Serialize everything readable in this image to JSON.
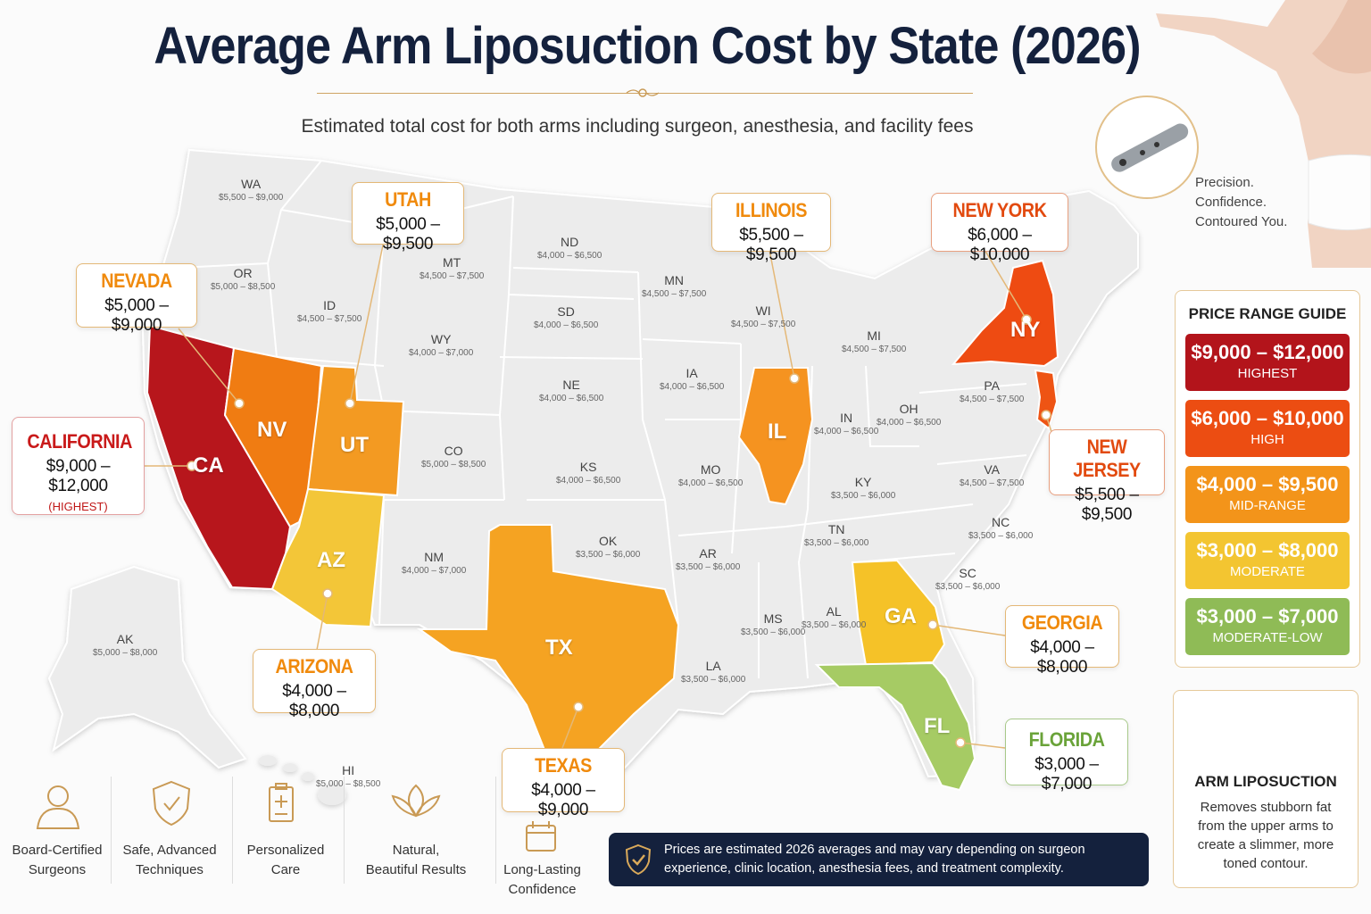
{
  "title": "Average Arm Liposuction Cost by State (2026)",
  "subtitle": "Estimated total cost for both arms including surgeon, anesthesia, and facility fees",
  "tagline": [
    "Precision.",
    "Confidence.",
    "Contoured You."
  ],
  "callouts": {
    "utah": {
      "name": "UTAH",
      "price": "$5,000 – $9,500"
    },
    "nevada": {
      "name": "NEVADA",
      "price": "$5,000 – $9,000"
    },
    "california": {
      "name": "CALIFORNIA",
      "price": "$9,000 – $12,000",
      "note": "(HIGHEST)"
    },
    "arizona": {
      "name": "ARIZONA",
      "price": "$4,000 – $8,000"
    },
    "texas": {
      "name": "TEXAS",
      "price": "$4,000 – $9,000"
    },
    "illinois": {
      "name": "ILLINOIS",
      "price": "$5,500 – $9,500"
    },
    "newyork": {
      "name": "NEW YORK",
      "price": "$6,000 – $10,000"
    },
    "newjersey": {
      "name": "NEW JERSEY",
      "price": "$5,500 – $9,500"
    },
    "georgia": {
      "name": "GEORGIA",
      "price": "$4,000 – $8,000"
    },
    "florida": {
      "name": "FLORIDA",
      "price": "$3,000 – $7,000"
    }
  },
  "highlighted_abbr": {
    "ca": "CA",
    "nv": "NV",
    "ut": "UT",
    "az": "AZ",
    "tx": "TX",
    "il": "IL",
    "ny": "NY",
    "ga": "GA",
    "fl": "FL"
  },
  "states": {
    "wa": {
      "a": "WA",
      "r": "$5,500 – $9,000"
    },
    "or": {
      "a": "OR",
      "r": "$5,000 – $8,500"
    },
    "id": {
      "a": "ID",
      "r": "$4,500 – $7,500"
    },
    "mt": {
      "a": "MT",
      "r": "$4,500 – $7,500"
    },
    "wy": {
      "a": "WY",
      "r": "$4,000 – $7,000"
    },
    "co": {
      "a": "CO",
      "r": "$5,000 – $8,500"
    },
    "nm": {
      "a": "NM",
      "r": "$4,000 – $7,000"
    },
    "nd": {
      "a": "ND",
      "r": "$4,000 – $6,500"
    },
    "sd": {
      "a": "SD",
      "r": "$4,000 – $6,500"
    },
    "ne": {
      "a": "NE",
      "r": "$4,000 – $6,500"
    },
    "ks": {
      "a": "KS",
      "r": "$4,000 – $6,500"
    },
    "ok": {
      "a": "OK",
      "r": "$3,500 – $6,000"
    },
    "mn": {
      "a": "MN",
      "r": "$4,500 – $7,500"
    },
    "ia": {
      "a": "IA",
      "r": "$4,000 – $6,500"
    },
    "mo": {
      "a": "MO",
      "r": "$4,000 – $6,500"
    },
    "ar": {
      "a": "AR",
      "r": "$3,500 – $6,000"
    },
    "la": {
      "a": "LA",
      "r": "$3,500 – $6,000"
    },
    "wi": {
      "a": "WI",
      "r": "$4,500 – $7,500"
    },
    "mi": {
      "a": "MI",
      "r": "$4,500 – $7,500"
    },
    "in": {
      "a": "IN",
      "r": "$4,000 – $6,500"
    },
    "oh": {
      "a": "OH",
      "r": "$4,000 – $6,500"
    },
    "ky": {
      "a": "KY",
      "r": "$3,500 – $6,000"
    },
    "tn": {
      "a": "TN",
      "r": "$3,500 – $6,000"
    },
    "ms": {
      "a": "MS",
      "r": "$3,500 – $6,000"
    },
    "al": {
      "a": "AL",
      "r": "$3,500 – $6,000"
    },
    "pa": {
      "a": "PA",
      "r": "$4,500 – $7,500"
    },
    "va": {
      "a": "VA",
      "r": "$4,500 – $7,500"
    },
    "nc": {
      "a": "NC",
      "r": "$3,500 – $6,000"
    },
    "sc": {
      "a": "SC",
      "r": "$3,500 – $6,000"
    },
    "ak": {
      "a": "AK",
      "r": "$5,000 – $8,000"
    },
    "hi": {
      "a": "HI",
      "r": "$5,000 – $8,500"
    }
  },
  "guide": {
    "title": "PRICE RANGE GUIDE",
    "tiers": [
      {
        "range": "$9,000 – $12,000",
        "label": "HIGHEST",
        "color": "#b3141b"
      },
      {
        "range": "$6,000 – $10,000",
        "label": "HIGH",
        "color": "#ec4d12"
      },
      {
        "range": "$4,000 – $9,500",
        "label": "MID-RANGE",
        "color": "#f3941a"
      },
      {
        "range": "$3,000 – $8,000",
        "label": "MODERATE",
        "color": "#f3c531"
      },
      {
        "range": "$3,000 – $7,000",
        "label": "MODERATE-LOW",
        "color": "#8fbb56"
      }
    ]
  },
  "info": {
    "title": "ARM LIPOSUCTION",
    "desc": "Removes stubborn fat from the upper arms to create a slimmer, more toned contour."
  },
  "features": [
    {
      "l1": "Board-Certified",
      "l2": "Surgeons",
      "icon": "surgeon-icon"
    },
    {
      "l1": "Safe, Advanced",
      "l2": "Techniques",
      "icon": "shield-icon"
    },
    {
      "l1": "Personalized",
      "l2": "Care",
      "icon": "clipboard-icon"
    },
    {
      "l1": "Natural,",
      "l2": "Beautiful Results",
      "icon": "lotus-icon"
    },
    {
      "l1": "Long-Lasting",
      "l2": "Confidence",
      "icon": "calendar-icon"
    }
  ],
  "disclaimer": "Prices are estimated 2026 averages and may vary depending on surgeon experience, clinic location, anesthesia fees, and treatment complexity."
}
